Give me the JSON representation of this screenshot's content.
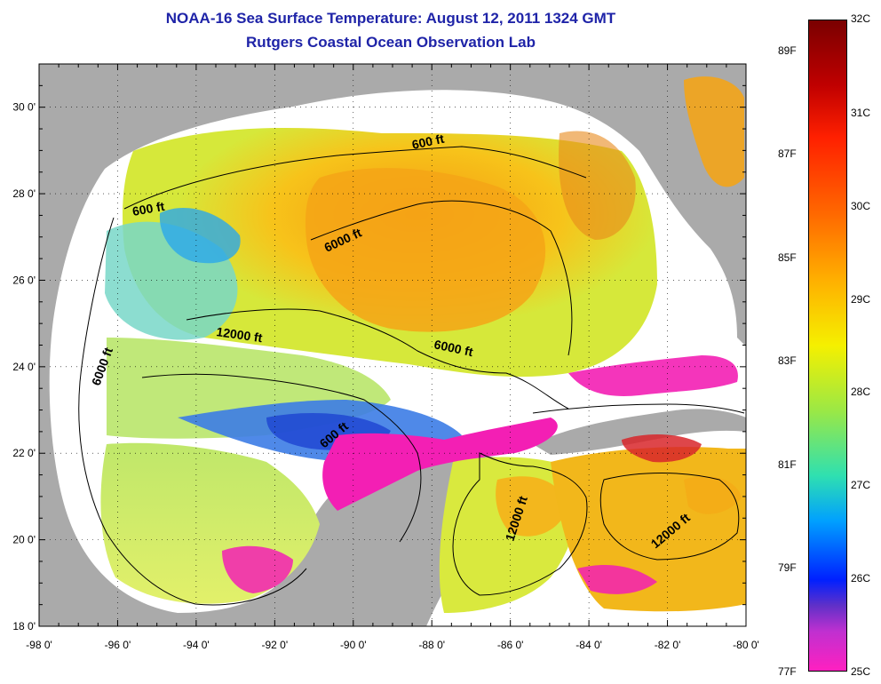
{
  "title": {
    "line1": "NOAA-16 Sea Surface Temperature:  August 12, 2011 1324 GMT",
    "line2": "Rutgers Coastal Ocean Observation Lab"
  },
  "map": {
    "lon_ticks": [
      "-98 0'",
      "-96 0'",
      "-94 0'",
      "-92 0'",
      "-90 0'",
      "-88 0'",
      "-86 0'",
      "-84 0'",
      "-82 0'",
      "-80 0'"
    ],
    "lat_ticks": [
      "30 0'",
      "28 0'",
      "26 0'",
      "24 0'",
      "22 0'",
      "20 0'",
      "18 0'"
    ],
    "lon_range": [
      -98,
      -80
    ],
    "lat_range": [
      18,
      31
    ],
    "contour_labels": [
      "600 ft",
      "600 ft",
      "6000 ft",
      "12000 ft",
      "6000 ft",
      "6000 ft",
      "600 ft",
      "12000 ft",
      "12000 ft"
    ],
    "colors": {
      "land": "#aaaaaa",
      "cloud": "#ffffff"
    }
  },
  "colorbar": {
    "celsius": [
      "32C",
      "31C",
      "30C",
      "29C",
      "28C",
      "27C",
      "26C",
      "25C"
    ],
    "fahrenheit": [
      "89F",
      "87F",
      "85F",
      "83F",
      "81F",
      "79F",
      "77F"
    ],
    "range_c": [
      25,
      32
    ]
  }
}
